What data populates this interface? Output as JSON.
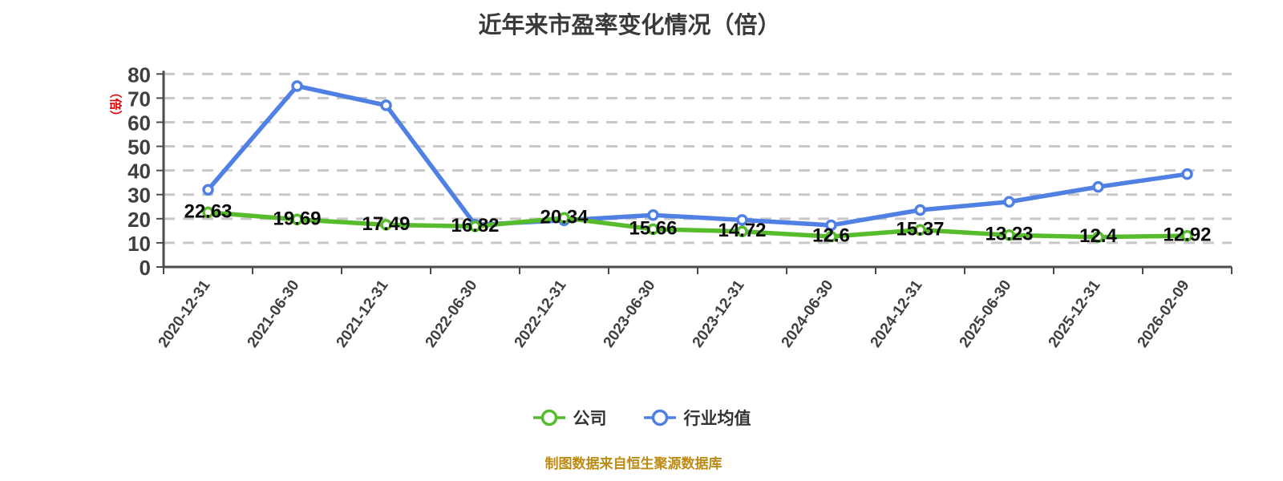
{
  "title": "近年来市盈率变化情况（倍）",
  "y_axis_unit": "（倍）",
  "footer": "制图数据来自恒生聚源数据库",
  "legend": [
    {
      "label": "公司",
      "color": "#56bc2b"
    },
    {
      "label": "行业均值",
      "color": "#5080e4"
    }
  ],
  "colors": {
    "company": "#56bc2b",
    "industry": "#5080e4",
    "grid": "#c8c8c8",
    "axis": "#4c4c4c",
    "tick_text": "#3f3f3f",
    "label_text": "#0a0a0a",
    "title_text": "#3a3a3a",
    "footer_text": "#bd8a12",
    "unit_text": "#e60000",
    "marker_fill": "#ffffff"
  },
  "chart_data": {
    "type": "line",
    "title": "近年来市盈率变化情况（倍）",
    "categories": [
      "2020-12-31",
      "2021-06-30",
      "2021-12-31",
      "2022-06-30",
      "2022-12-31",
      "2023-06-30",
      "2023-12-31",
      "2024-06-30",
      "2024-12-31",
      "2025-06-30",
      "2025-12-31",
      "2026-02-09"
    ],
    "series": [
      {
        "name": "公司",
        "color": "#56bc2b",
        "values": [
          22.63,
          19.69,
          17.49,
          16.82,
          20.34,
          15.66,
          14.72,
          12.6,
          15.37,
          13.23,
          12.4,
          12.92
        ],
        "labels": [
          "22.63",
          "19.69",
          "17.49",
          "16.82",
          "20.34",
          "15.66",
          "14.72",
          "12.6",
          "15.37",
          "13.23",
          "12.4",
          "12.92"
        ],
        "labels_visible": true
      },
      {
        "name": "行业均值",
        "color": "#5080e4",
        "values": [
          32,
          75,
          67,
          17.5,
          19.3,
          21.5,
          19.5,
          17.3,
          23.6,
          27,
          33.2,
          38.5
        ],
        "labels_visible": false
      }
    ],
    "xlabel": "",
    "ylabel": "（倍）",
    "ylim": [
      0,
      80
    ],
    "y_ticks": [
      0,
      10,
      20,
      30,
      40,
      50,
      60,
      70,
      80
    ],
    "grid": "dashed horizontal",
    "legend_position": "bottom"
  }
}
